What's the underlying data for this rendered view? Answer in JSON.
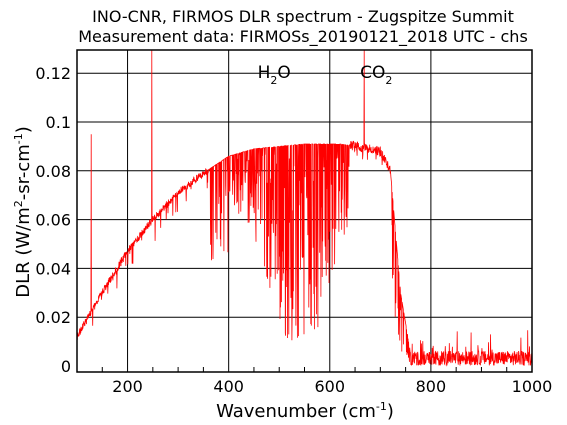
{
  "chart_data": {
    "type": "line",
    "title_line1": "INO-CNR, FIRMOS DLR spectrum - Zugspitze Summit",
    "title_line2": "Measurement data: FIRMOSs_20190121_2018 UTC - chs",
    "xlabel": {
      "main": "Wavenumber (cm",
      "sup": "-1",
      "end": ")"
    },
    "ylabel": {
      "p1": "DLR (W/m",
      "s1": "2",
      "p2": "-sr-cm",
      "s2": "-1",
      "p3": ")"
    },
    "xlim": [
      100,
      1000
    ],
    "ylim": [
      -0.002,
      0.13
    ],
    "xticks": [
      200,
      400,
      600,
      800,
      1000
    ],
    "xtick_labels": [
      "200",
      "400",
      "600",
      "800",
      "1000"
    ],
    "yticks": [
      0,
      0.02,
      0.04,
      0.06,
      0.08,
      0.1,
      0.12
    ],
    "ytick_labels": [
      "0",
      "0.02",
      "0.04",
      "0.06",
      "0.08",
      "0.1",
      "0.12"
    ],
    "grid": true,
    "line_color": "#ff0000",
    "annotations": [
      {
        "base": "H",
        "sub": "2",
        "tail": "O",
        "x": 490
      },
      {
        "base": "CO",
        "sub": "2",
        "tail": "",
        "x": 692
      }
    ],
    "envelope": {
      "x": [
        100,
        150,
        200,
        250,
        300,
        350,
        400,
        450,
        500,
        550,
        600,
        620,
        650,
        700,
        720,
        740,
        760,
        800,
        900,
        1000
      ],
      "y": [
        0.012,
        0.03,
        0.047,
        0.06,
        0.071,
        0.079,
        0.086,
        0.089,
        0.09,
        0.091,
        0.091,
        0.091,
        0.09,
        0.088,
        0.08,
        0.03,
        0.005,
        0.003,
        0.003,
        0.003
      ]
    },
    "spikes": [
      {
        "x": 128,
        "y": 0.095
      },
      {
        "x": 248,
        "y": 0.13
      },
      {
        "x": 668,
        "y": 0.13
      }
    ]
  }
}
